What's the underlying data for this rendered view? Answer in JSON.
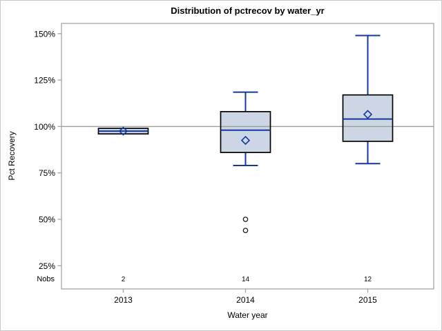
{
  "figure": {
    "background": "#ffffff",
    "border_color": "#c8c8c8"
  },
  "chart_data": {
    "type": "boxplot",
    "title": "Distribution of pctrecov by water_yr",
    "xlabel": "Water year",
    "ylabel": "Pct Recovery",
    "nobs_label": "Nobs",
    "categories": [
      "2013",
      "2014",
      "2015"
    ],
    "ylim": [
      12.5,
      155.5
    ],
    "y_ticks": [
      25,
      50,
      75,
      100,
      125,
      150
    ],
    "y_tick_labels": [
      "25%",
      "50%",
      "75%",
      "100%",
      "125%",
      "150%"
    ],
    "reference_line": 100,
    "grid": false,
    "legend": false,
    "series": [
      {
        "category": "2013",
        "nobs": "2",
        "whisker_low": 96,
        "q1": 96,
        "median": 97.5,
        "q3": 99,
        "whisker_high": 99,
        "mean": 97.5,
        "outliers": []
      },
      {
        "category": "2014",
        "nobs": "14",
        "whisker_low": 79,
        "q1": 86,
        "median": 98,
        "q3": 108,
        "whisker_high": 118.5,
        "mean": 92.5,
        "outliers": [
          50,
          44
        ]
      },
      {
        "category": "2015",
        "nobs": "12",
        "whisker_low": 80,
        "q1": 92,
        "median": 104,
        "q3": 117,
        "whisker_high": 149,
        "mean": 106.5,
        "outliers": []
      }
    ],
    "colors": {
      "box_fill": "#ccd6e4",
      "box_border": "#000000",
      "box_lines": "#10389e",
      "outlier": "#1a1a1a",
      "axis_line": "#a5a5a5",
      "reference_line": "#9c9c9c",
      "text": "#000000"
    }
  }
}
